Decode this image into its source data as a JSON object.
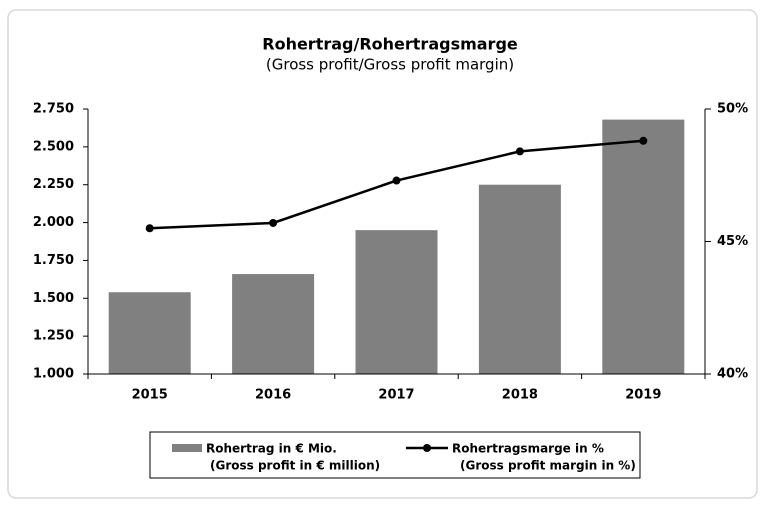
{
  "chart_data": {
    "type": "bar_line",
    "title": "Rohertrag/Rohertragsmarge",
    "subtitle": "(Gross profit/Gross profit margin)",
    "categories": [
      "2015",
      "2016",
      "2017",
      "2018",
      "2019"
    ],
    "series": [
      {
        "name": [
          "Rohertrag in € Mio.",
          "(Gross profit in € million)"
        ],
        "type": "bar",
        "color": "#808080",
        "values": [
          1540,
          1660,
          1950,
          2250,
          2680
        ]
      },
      {
        "name": [
          "Rohertragsmarge in %",
          "(Gross profit margin in %)"
        ],
        "type": "line",
        "axis": "y2",
        "color": "#000000",
        "values": [
          45.5,
          45.7,
          47.3,
          48.4,
          48.8
        ]
      }
    ],
    "ylim": [
      1000,
      2750
    ],
    "yticks": [
      {
        "value": 1000,
        "label": "1.000"
      },
      {
        "value": 1250,
        "label": "1.250"
      },
      {
        "value": 1500,
        "label": "1.500"
      },
      {
        "value": 1750,
        "label": "1.750"
      },
      {
        "value": 2000,
        "label": "2.000"
      },
      {
        "value": 2250,
        "label": "2.250"
      },
      {
        "value": 2500,
        "label": "2.500"
      },
      {
        "value": 2750,
        "label": "2.750"
      }
    ],
    "y2lim": [
      40,
      50
    ],
    "y2ticks": [
      {
        "value": 40,
        "label": "40%"
      },
      {
        "value": 45,
        "label": "45%"
      },
      {
        "value": 50,
        "label": "50%"
      }
    ],
    "legend": "bottom"
  }
}
